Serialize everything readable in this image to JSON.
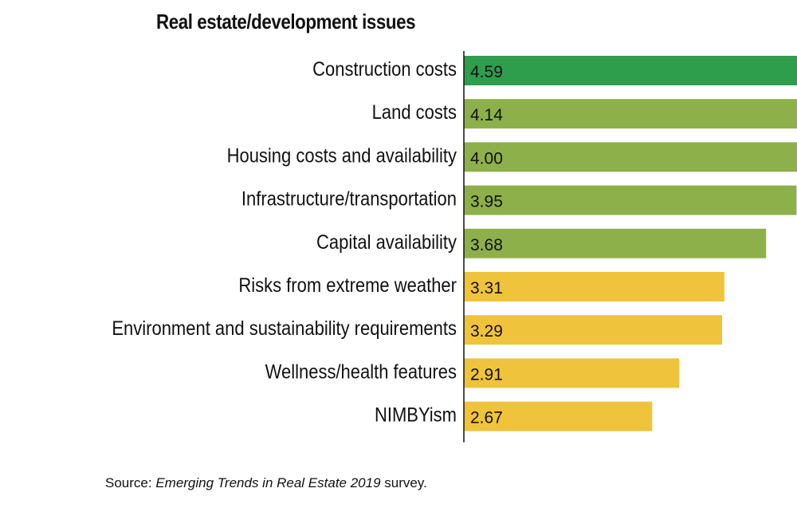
{
  "title": "Real estate/development issues",
  "source": {
    "prefix": "Source: ",
    "publication": "Emerging Trends in Real Estate 2019",
    "suffix": " survey."
  },
  "colors": {
    "high": "#2e9e4c",
    "mid": "#8db04a",
    "low": "#f0c33c",
    "axis": "#111111"
  },
  "chart_data": {
    "type": "bar",
    "orientation": "horizontal",
    "title": "Real estate/development issues",
    "categories": [
      "Construction costs",
      "Land costs",
      "Housing costs and availability",
      "Infrastructure/transportation",
      "Capital availability",
      "Risks from extreme weather",
      "Environment and sustainability requirements",
      "Wellness/health features",
      "NIMBYism"
    ],
    "values": [
      4.59,
      4.14,
      4.0,
      3.95,
      3.68,
      3.31,
      3.29,
      2.91,
      2.67
    ],
    "value_labels": [
      "4.59",
      "4.14",
      "4.00",
      "3.95",
      "3.68",
      "3.31",
      "3.29",
      "2.91",
      "2.67"
    ],
    "bar_color_groups": [
      "high",
      "mid",
      "mid",
      "mid",
      "mid",
      "low",
      "low",
      "low",
      "low"
    ],
    "xlim": [
      1,
      5
    ],
    "grid": false,
    "legend": "none"
  }
}
